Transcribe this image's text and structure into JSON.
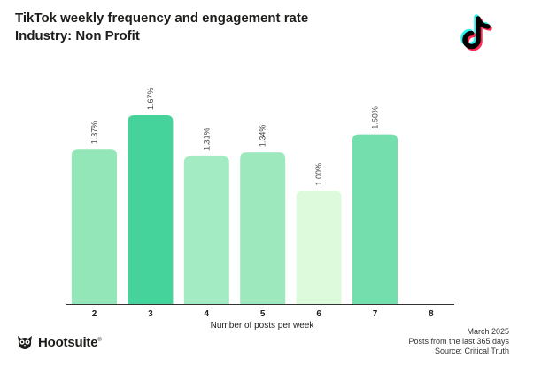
{
  "header": {
    "title": "TikTok weekly frequency and engagement rate",
    "subtitle": "Industry: Non Profit"
  },
  "chart_data": {
    "type": "bar",
    "title": "TikTok weekly frequency and engagement rate",
    "subtitle": "Industry: Non Profit",
    "xlabel": "Number of posts per week",
    "ylabel": "",
    "categories": [
      "2",
      "3",
      "4",
      "5",
      "6",
      "7",
      "8"
    ],
    "values": [
      1.37,
      1.67,
      1.31,
      1.34,
      1.0,
      1.5,
      null
    ],
    "data_labels": [
      "1.37%",
      "1.67%",
      "1.31%",
      "1.34%",
      "1.00%",
      "1.50%",
      ""
    ],
    "bar_colors": [
      "#93e6b7",
      "#45d39b",
      "#a3ebc2",
      "#9de9bd",
      "#ddfbdc",
      "#74dfac",
      "#ffffff"
    ],
    "ylim": [
      0,
      1.67
    ],
    "grid": false,
    "legend": "none"
  },
  "footer": {
    "date": "March 2025",
    "period": "Posts from the last 365 days",
    "source": "Source: Critical Truth",
    "brand": "Hootsuite",
    "trademark": "®"
  },
  "colors": {
    "axis": "#333333",
    "text": "#1d1d1b",
    "label": "#444444"
  }
}
